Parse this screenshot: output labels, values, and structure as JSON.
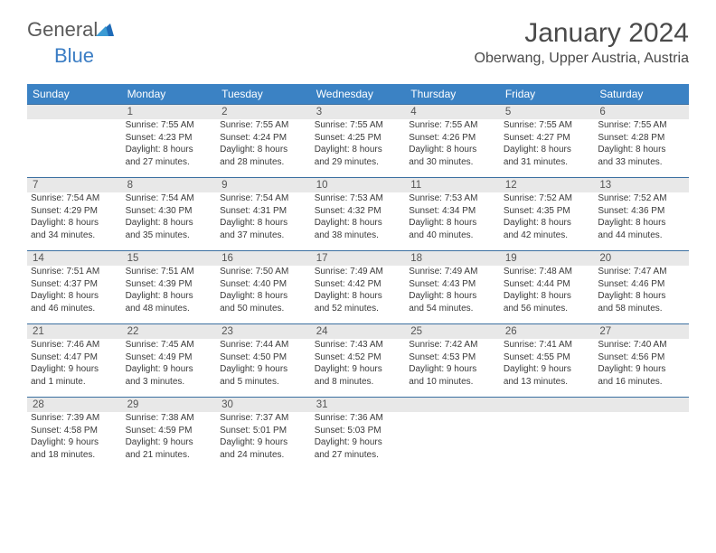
{
  "logo": {
    "word1": "General",
    "word2": "Blue"
  },
  "title": "January 2024",
  "location": "Oberwang, Upper Austria, Austria",
  "colors": {
    "header_bg": "#3b82c4",
    "header_text": "#ffffff",
    "daynum_bg": "#e8e8e8",
    "row_border": "#3b6fa0",
    "body_text": "#3a3a3a",
    "logo_gray": "#5a5a5a",
    "logo_blue": "#3b7dc4"
  },
  "day_headers": [
    "Sunday",
    "Monday",
    "Tuesday",
    "Wednesday",
    "Thursday",
    "Friday",
    "Saturday"
  ],
  "weeks": [
    [
      null,
      {
        "n": "1",
        "sr": "Sunrise: 7:55 AM",
        "ss": "Sunset: 4:23 PM",
        "d1": "Daylight: 8 hours",
        "d2": "and 27 minutes."
      },
      {
        "n": "2",
        "sr": "Sunrise: 7:55 AM",
        "ss": "Sunset: 4:24 PM",
        "d1": "Daylight: 8 hours",
        "d2": "and 28 minutes."
      },
      {
        "n": "3",
        "sr": "Sunrise: 7:55 AM",
        "ss": "Sunset: 4:25 PM",
        "d1": "Daylight: 8 hours",
        "d2": "and 29 minutes."
      },
      {
        "n": "4",
        "sr": "Sunrise: 7:55 AM",
        "ss": "Sunset: 4:26 PM",
        "d1": "Daylight: 8 hours",
        "d2": "and 30 minutes."
      },
      {
        "n": "5",
        "sr": "Sunrise: 7:55 AM",
        "ss": "Sunset: 4:27 PM",
        "d1": "Daylight: 8 hours",
        "d2": "and 31 minutes."
      },
      {
        "n": "6",
        "sr": "Sunrise: 7:55 AM",
        "ss": "Sunset: 4:28 PM",
        "d1": "Daylight: 8 hours",
        "d2": "and 33 minutes."
      }
    ],
    [
      {
        "n": "7",
        "sr": "Sunrise: 7:54 AM",
        "ss": "Sunset: 4:29 PM",
        "d1": "Daylight: 8 hours",
        "d2": "and 34 minutes."
      },
      {
        "n": "8",
        "sr": "Sunrise: 7:54 AM",
        "ss": "Sunset: 4:30 PM",
        "d1": "Daylight: 8 hours",
        "d2": "and 35 minutes."
      },
      {
        "n": "9",
        "sr": "Sunrise: 7:54 AM",
        "ss": "Sunset: 4:31 PM",
        "d1": "Daylight: 8 hours",
        "d2": "and 37 minutes."
      },
      {
        "n": "10",
        "sr": "Sunrise: 7:53 AM",
        "ss": "Sunset: 4:32 PM",
        "d1": "Daylight: 8 hours",
        "d2": "and 38 minutes."
      },
      {
        "n": "11",
        "sr": "Sunrise: 7:53 AM",
        "ss": "Sunset: 4:34 PM",
        "d1": "Daylight: 8 hours",
        "d2": "and 40 minutes."
      },
      {
        "n": "12",
        "sr": "Sunrise: 7:52 AM",
        "ss": "Sunset: 4:35 PM",
        "d1": "Daylight: 8 hours",
        "d2": "and 42 minutes."
      },
      {
        "n": "13",
        "sr": "Sunrise: 7:52 AM",
        "ss": "Sunset: 4:36 PM",
        "d1": "Daylight: 8 hours",
        "d2": "and 44 minutes."
      }
    ],
    [
      {
        "n": "14",
        "sr": "Sunrise: 7:51 AM",
        "ss": "Sunset: 4:37 PM",
        "d1": "Daylight: 8 hours",
        "d2": "and 46 minutes."
      },
      {
        "n": "15",
        "sr": "Sunrise: 7:51 AM",
        "ss": "Sunset: 4:39 PM",
        "d1": "Daylight: 8 hours",
        "d2": "and 48 minutes."
      },
      {
        "n": "16",
        "sr": "Sunrise: 7:50 AM",
        "ss": "Sunset: 4:40 PM",
        "d1": "Daylight: 8 hours",
        "d2": "and 50 minutes."
      },
      {
        "n": "17",
        "sr": "Sunrise: 7:49 AM",
        "ss": "Sunset: 4:42 PM",
        "d1": "Daylight: 8 hours",
        "d2": "and 52 minutes."
      },
      {
        "n": "18",
        "sr": "Sunrise: 7:49 AM",
        "ss": "Sunset: 4:43 PM",
        "d1": "Daylight: 8 hours",
        "d2": "and 54 minutes."
      },
      {
        "n": "19",
        "sr": "Sunrise: 7:48 AM",
        "ss": "Sunset: 4:44 PM",
        "d1": "Daylight: 8 hours",
        "d2": "and 56 minutes."
      },
      {
        "n": "20",
        "sr": "Sunrise: 7:47 AM",
        "ss": "Sunset: 4:46 PM",
        "d1": "Daylight: 8 hours",
        "d2": "and 58 minutes."
      }
    ],
    [
      {
        "n": "21",
        "sr": "Sunrise: 7:46 AM",
        "ss": "Sunset: 4:47 PM",
        "d1": "Daylight: 9 hours",
        "d2": "and 1 minute."
      },
      {
        "n": "22",
        "sr": "Sunrise: 7:45 AM",
        "ss": "Sunset: 4:49 PM",
        "d1": "Daylight: 9 hours",
        "d2": "and 3 minutes."
      },
      {
        "n": "23",
        "sr": "Sunrise: 7:44 AM",
        "ss": "Sunset: 4:50 PM",
        "d1": "Daylight: 9 hours",
        "d2": "and 5 minutes."
      },
      {
        "n": "24",
        "sr": "Sunrise: 7:43 AM",
        "ss": "Sunset: 4:52 PM",
        "d1": "Daylight: 9 hours",
        "d2": "and 8 minutes."
      },
      {
        "n": "25",
        "sr": "Sunrise: 7:42 AM",
        "ss": "Sunset: 4:53 PM",
        "d1": "Daylight: 9 hours",
        "d2": "and 10 minutes."
      },
      {
        "n": "26",
        "sr": "Sunrise: 7:41 AM",
        "ss": "Sunset: 4:55 PM",
        "d1": "Daylight: 9 hours",
        "d2": "and 13 minutes."
      },
      {
        "n": "27",
        "sr": "Sunrise: 7:40 AM",
        "ss": "Sunset: 4:56 PM",
        "d1": "Daylight: 9 hours",
        "d2": "and 16 minutes."
      }
    ],
    [
      {
        "n": "28",
        "sr": "Sunrise: 7:39 AM",
        "ss": "Sunset: 4:58 PM",
        "d1": "Daylight: 9 hours",
        "d2": "and 18 minutes."
      },
      {
        "n": "29",
        "sr": "Sunrise: 7:38 AM",
        "ss": "Sunset: 4:59 PM",
        "d1": "Daylight: 9 hours",
        "d2": "and 21 minutes."
      },
      {
        "n": "30",
        "sr": "Sunrise: 7:37 AM",
        "ss": "Sunset: 5:01 PM",
        "d1": "Daylight: 9 hours",
        "d2": "and 24 minutes."
      },
      {
        "n": "31",
        "sr": "Sunrise: 7:36 AM",
        "ss": "Sunset: 5:03 PM",
        "d1": "Daylight: 9 hours",
        "d2": "and 27 minutes."
      },
      null,
      null,
      null
    ]
  ]
}
